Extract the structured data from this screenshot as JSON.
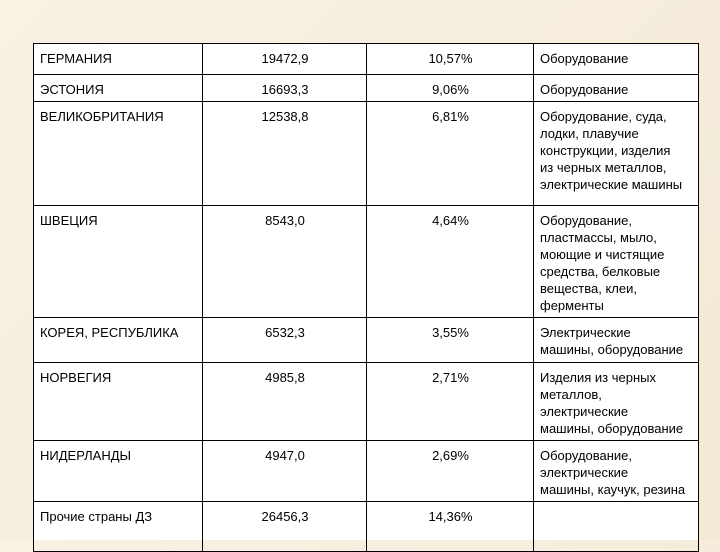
{
  "table": {
    "rows": [
      {
        "country": "ГЕРМАНИЯ",
        "value": "19472,9",
        "share": "10,57%",
        "goods": "Оборудование"
      },
      {
        "country": "ЭСТОНИЯ",
        "value": "16693,3",
        "share": "9,06%",
        "goods": "Оборудование"
      },
      {
        "country": "ВЕЛИКОБРИТАНИЯ",
        "value": "12538,8",
        "share": "6,81%",
        "goods": "Оборудование, суда,\nлодки, плавучие\nконструкции, изделия\nиз черных металлов,\nэлектрические машины"
      },
      {
        "country": "ШВЕЦИЯ",
        "value": "8543,0",
        "share": "4,64%",
        "goods": "Оборудование,\nпластмассы, мыло,\nмоющие и чистящие\nсредства, белковые\nвещества, клеи,\nферменты"
      },
      {
        "country": "КОРЕЯ, РЕСПУБЛИКА",
        "value": "6532,3",
        "share": "3,55%",
        "goods": "Электрические\nмашины, оборудование"
      },
      {
        "country": "НОРВЕГИЯ",
        "value": "4985,8",
        "share": "2,71%",
        "goods": "Изделия из черных\nметаллов,\nэлектрические\nмашины, оборудование"
      },
      {
        "country": "НИДЕРЛАНДЫ",
        "value": "4947,0",
        "share": "2,69%",
        "goods": "Оборудование,\nэлектрические\nмашины, каучук, резина"
      },
      {
        "country": "Прочие страны ДЗ",
        "value": "26456,3",
        "share": "14,36%",
        "goods": ""
      }
    ]
  }
}
